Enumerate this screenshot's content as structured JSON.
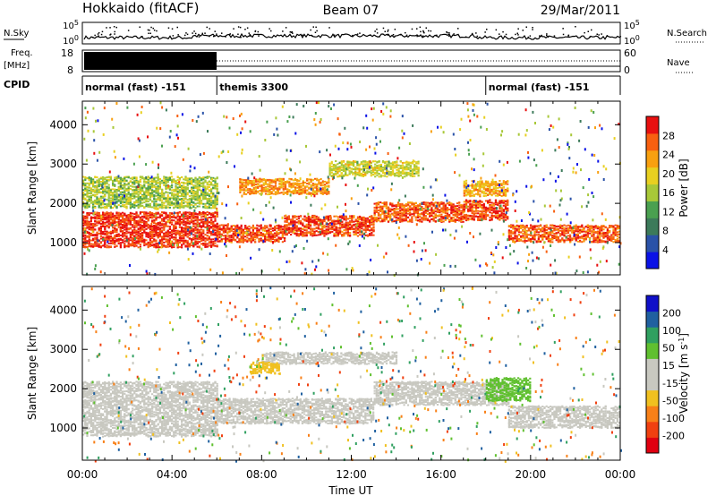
{
  "header": {
    "station": "Hokkaido (fitACF)",
    "beam": "Beam 07",
    "date": "29/Mar/2011"
  },
  "params": {
    "nsky_label": "N.Sky",
    "nsearch_label": "N.Search",
    "nsky_ticks": [
      "10^5",
      "10^0"
    ],
    "nsearch_ticks": [
      "10^5",
      "10^0"
    ],
    "freq_label": "Freq.",
    "freq_unit": "[MHz]",
    "freq_ticks": [
      "18",
      "8"
    ],
    "nave_label": "Nave",
    "nave_ticks": [
      "60",
      "0"
    ],
    "cpid_label": "CPID",
    "cpid_segments": [
      {
        "name": "normal (fast) -151",
        "start_h": 0,
        "end_h": 6
      },
      {
        "name": "themis 3300",
        "start_h": 6,
        "end_h": 18
      },
      {
        "name": "normal (fast) -151",
        "start_h": 18,
        "end_h": 24
      }
    ]
  },
  "colors": {
    "power": [
      "#0a12e6",
      "#2a52a8",
      "#3c7a5a",
      "#4aa050",
      "#a8c838",
      "#e8d020",
      "#f8a010",
      "#f86010",
      "#e81010"
    ],
    "velocity": [
      "#e00010",
      "#f04010",
      "#f88018",
      "#f0c020",
      "#c8c8c0",
      "#c8c8c0",
      "#60c030",
      "#30a060",
      "#2060a0",
      "#1010c8"
    ]
  },
  "chart_data": [
    {
      "type": "heatmap",
      "name": "power",
      "xlabel": "",
      "ylabel": "Slant Range [km]",
      "xlim": [
        0,
        24
      ],
      "ylim": [
        180,
        4600
      ],
      "yticks": [
        "1000",
        "2000",
        "3000",
        "4000"
      ],
      "colorbar_label": "Power [dB]",
      "colorbar_ticks": [
        "4",
        "8",
        "12",
        "16",
        "20",
        "24",
        "28"
      ],
      "colorbar_range": [
        0,
        32
      ],
      "bands": [
        {
          "from_h": 0,
          "to_h": 6,
          "center_km": 1350,
          "half_width_km": 450,
          "power_db": 29
        },
        {
          "from_h": 6,
          "to_h": 9,
          "center_km": 1250,
          "half_width_km": 220,
          "power_db": 28
        },
        {
          "from_h": 9,
          "to_h": 13,
          "center_km": 1450,
          "half_width_km": 260,
          "power_db": 28
        },
        {
          "from_h": 13,
          "to_h": 17,
          "center_km": 1800,
          "half_width_km": 250,
          "power_db": 27
        },
        {
          "from_h": 17,
          "to_h": 19,
          "center_km": 1850,
          "half_width_km": 260,
          "power_db": 28
        },
        {
          "from_h": 19,
          "to_h": 24,
          "center_km": 1250,
          "half_width_km": 220,
          "power_db": 27
        },
        {
          "from_h": 7,
          "to_h": 11,
          "center_km": 2450,
          "half_width_km": 200,
          "power_db": 24
        },
        {
          "from_h": 11,
          "to_h": 15,
          "center_km": 2900,
          "half_width_km": 200,
          "power_db": 18
        },
        {
          "from_h": 17,
          "to_h": 19,
          "center_km": 2400,
          "half_width_km": 200,
          "power_db": 22
        },
        {
          "from_h": 0,
          "to_h": 6,
          "center_km": 2300,
          "half_width_km": 400,
          "power_db": 16
        }
      ]
    },
    {
      "type": "heatmap",
      "name": "velocity",
      "xlabel": "Time UT",
      "ylabel": "Slant Range [km]",
      "xlim": [
        0,
        24
      ],
      "ylim": [
        180,
        4600
      ],
      "xticks": [
        "00:00",
        "04:00",
        "08:00",
        "12:00",
        "16:00",
        "20:00",
        "00:00"
      ],
      "yticks": [
        "1000",
        "2000",
        "3000",
        "4000"
      ],
      "colorbar_label": "Velocity [m s^-1]",
      "colorbar_ticks": [
        "200",
        "100",
        "50",
        "15",
        "-15",
        "-50",
        "-100",
        "-200"
      ],
      "bands": [
        {
          "from_h": 0,
          "to_h": 6,
          "center_km": 1500,
          "half_width_km": 700,
          "velocity": 0
        },
        {
          "from_h": 6,
          "to_h": 13,
          "center_km": 1450,
          "half_width_km": 320,
          "velocity": 0
        },
        {
          "from_h": 13,
          "to_h": 19,
          "center_km": 1900,
          "half_width_km": 300,
          "velocity": 0
        },
        {
          "from_h": 19,
          "to_h": 24,
          "center_km": 1300,
          "half_width_km": 280,
          "velocity": 0
        },
        {
          "from_h": 8,
          "to_h": 14,
          "center_km": 2800,
          "half_width_km": 150,
          "velocity": 0
        },
        {
          "from_h": 18,
          "to_h": 20,
          "center_km": 2000,
          "half_width_km": 300,
          "velocity": 40
        },
        {
          "from_h": 7.5,
          "to_h": 8.8,
          "center_km": 2550,
          "half_width_km": 150,
          "velocity": -40
        }
      ]
    }
  ]
}
